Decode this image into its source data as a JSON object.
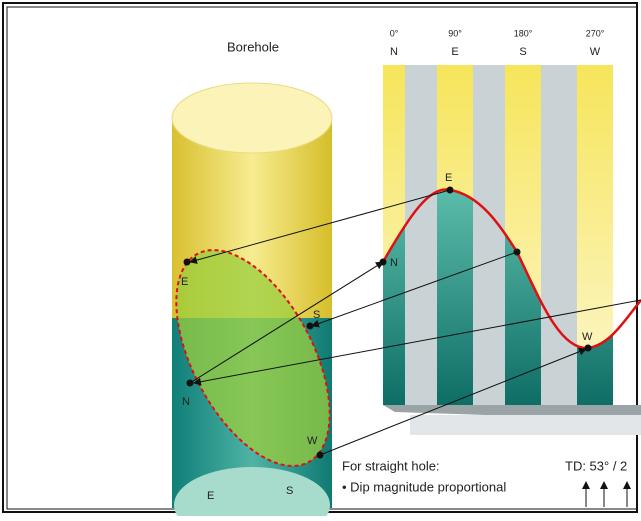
{
  "header": {
    "title": "Borehole"
  },
  "columns": [
    {
      "degree": "0°",
      "direction": "N"
    },
    {
      "degree": "90°",
      "direction": "E"
    },
    {
      "degree": "180°",
      "direction": "S"
    },
    {
      "degree": "270°",
      "direction": "W"
    }
  ],
  "curve_points": [
    "E",
    "N",
    "W"
  ],
  "ellipse_points": [
    "E",
    "S",
    "N",
    "W"
  ],
  "bottom_ellipse_points": [
    "E",
    "S"
  ],
  "notes": {
    "heading": "For straight hole:",
    "bullet": "• Dip magnitude  proportional",
    "td": "TD: 53° / 2"
  }
}
